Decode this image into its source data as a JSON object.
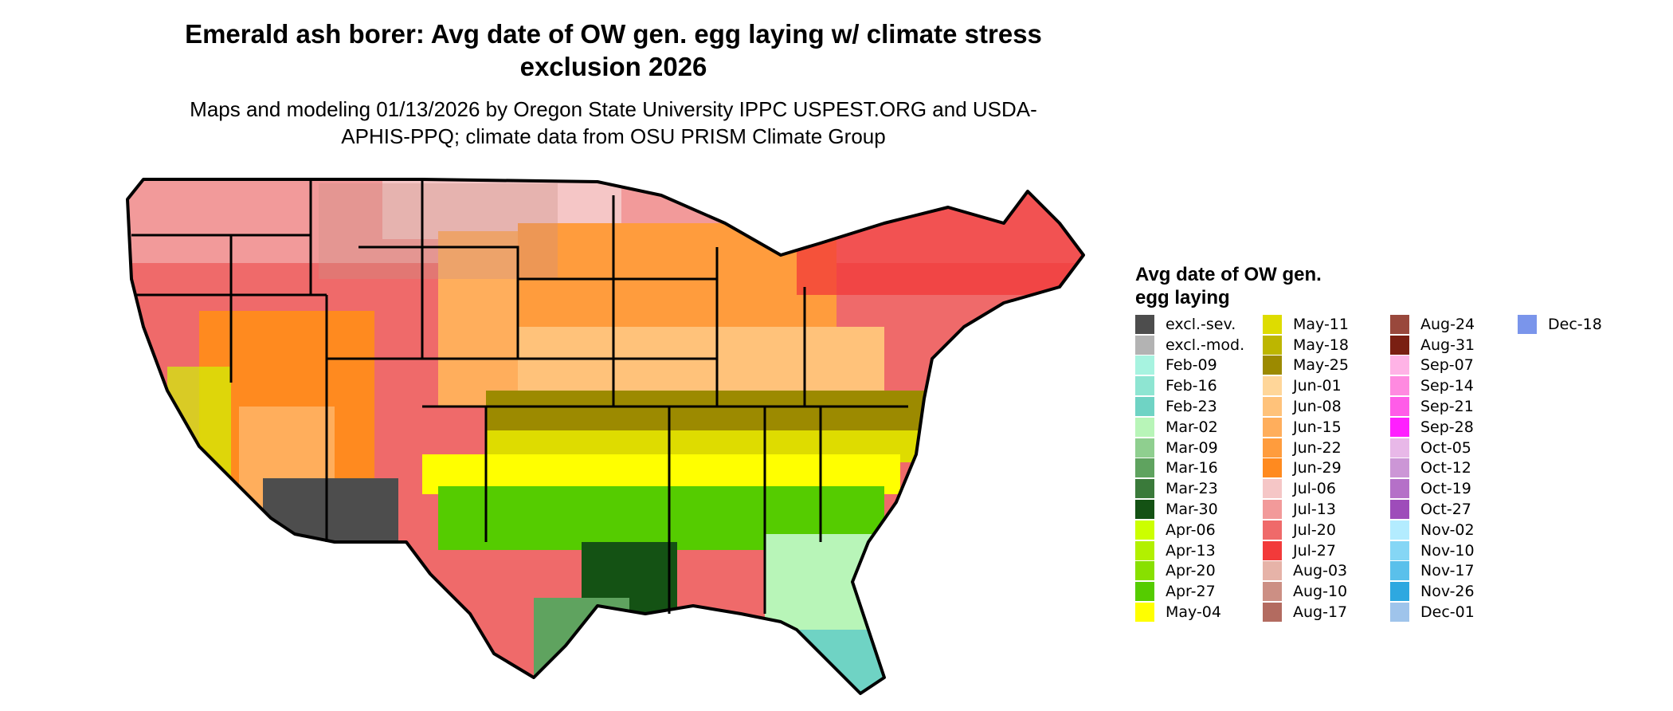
{
  "title": "Emerald ash borer: Avg date of OW gen. egg laying w/ climate stress exclusion 2026",
  "subtitle": "Maps and modeling 01/13/2026 by Oregon State University IPPC USPEST.ORG and USDA-APHIS-PPQ; climate data from OSU PRISM Climate Group",
  "map": {
    "region": "contiguous United States",
    "boundaries": "state outlines"
  },
  "legend": {
    "title": "Avg date of OW gen. egg laying",
    "items": [
      {
        "label": "excl.-sev.",
        "color": "#4d4d4d"
      },
      {
        "label": "excl.-mod.",
        "color": "#b3b3b3"
      },
      {
        "label": "Feb-09",
        "color": "#a7f3e0"
      },
      {
        "label": "Feb-16",
        "color": "#8ee5d2"
      },
      {
        "label": "Feb-23",
        "color": "#6fd3c4"
      },
      {
        "label": "Mar-02",
        "color": "#b8f5b8"
      },
      {
        "label": "Mar-09",
        "color": "#8fcf8f"
      },
      {
        "label": "Mar-16",
        "color": "#5fa35f"
      },
      {
        "label": "Mar-23",
        "color": "#3a7a3a"
      },
      {
        "label": "Mar-30",
        "color": "#145214"
      },
      {
        "label": "Apr-06",
        "color": "#ccff00"
      },
      {
        "label": "Apr-13",
        "color": "#b2f000"
      },
      {
        "label": "Apr-20",
        "color": "#88e000"
      },
      {
        "label": "Apr-27",
        "color": "#55cc00"
      },
      {
        "label": "May-04",
        "color": "#ffff00"
      },
      {
        "label": "May-11",
        "color": "#dedc00"
      },
      {
        "label": "May-18",
        "color": "#bdb600"
      },
      {
        "label": "May-25",
        "color": "#9c8a00"
      },
      {
        "label": "Jun-01",
        "color": "#ffd699"
      },
      {
        "label": "Jun-08",
        "color": "#ffc27a"
      },
      {
        "label": "Jun-15",
        "color": "#ffae5c"
      },
      {
        "label": "Jun-22",
        "color": "#ff9c3d"
      },
      {
        "label": "Jun-29",
        "color": "#ff8a1f"
      },
      {
        "label": "Jul-06",
        "color": "#f5c6c6"
      },
      {
        "label": "Jul-13",
        "color": "#f29a9a"
      },
      {
        "label": "Jul-20",
        "color": "#ef6a6a"
      },
      {
        "label": "Jul-27",
        "color": "#f23a3a"
      },
      {
        "label": "Aug-03",
        "color": "#e6b3a8"
      },
      {
        "label": "Aug-10",
        "color": "#cc8f84"
      },
      {
        "label": "Aug-17",
        "color": "#b36b60"
      },
      {
        "label": "Aug-24",
        "color": "#99483c"
      },
      {
        "label": "Aug-31",
        "color": "#7a1f12"
      },
      {
        "label": "Sep-07",
        "color": "#ffb3e6"
      },
      {
        "label": "Sep-14",
        "color": "#ff8ae0"
      },
      {
        "label": "Sep-21",
        "color": "#ff5ce8"
      },
      {
        "label": "Sep-28",
        "color": "#ff1fff"
      },
      {
        "label": "Oct-05",
        "color": "#e8b8e8"
      },
      {
        "label": "Oct-12",
        "color": "#cc96d6"
      },
      {
        "label": "Oct-19",
        "color": "#b570c8"
      },
      {
        "label": "Oct-27",
        "color": "#9e4cba"
      },
      {
        "label": "Nov-02",
        "color": "#b3ecff"
      },
      {
        "label": "Nov-10",
        "color": "#85d6f5"
      },
      {
        "label": "Nov-17",
        "color": "#5ac0eb"
      },
      {
        "label": "Nov-26",
        "color": "#2ea8e0"
      },
      {
        "label": "Dec-01",
        "color": "#9fc4eb"
      },
      {
        "label": "Dec-18",
        "color": "#7a95eb"
      }
    ]
  }
}
